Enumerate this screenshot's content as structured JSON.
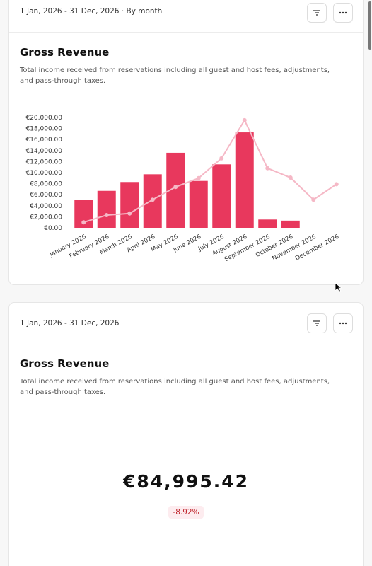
{
  "cards": [
    {
      "date_range": "1 Jan, 2026 - 31 Dec, 2026",
      "grouping": "By month",
      "title": "Gross Revenue",
      "description": "Total income received from reservations including all guest and host fees, adjustments, and pass-through taxes.",
      "chart_data": {
        "type": "bar",
        "categories": [
          "January 2026",
          "February 2026",
          "March 2026",
          "April 2026",
          "May 2026",
          "June 2026",
          "July 2026",
          "August 2026",
          "September 2026",
          "October 2026",
          "November 2026",
          "December 2026"
        ],
        "series": [
          {
            "type": "bar",
            "color": "#e8385d",
            "values": [
              5000,
              6700,
              8300,
              9700,
              13600,
              8500,
              11500,
              17300,
              1500,
              1300,
              0,
              0
            ]
          },
          {
            "type": "line",
            "color": "#f5b8c6",
            "values": [
              1000,
              2300,
              2600,
              5100,
              7400,
              9000,
              12600,
              19500,
              10800,
              9100,
              5100,
              7900
            ]
          }
        ],
        "ylim": [
          0,
          20000
        ],
        "yticks": [
          {
            "value": 0,
            "label": "€0.00"
          },
          {
            "value": 2000,
            "label": "€2,000.00"
          },
          {
            "value": 4000,
            "label": "€4,000.00"
          },
          {
            "value": 6000,
            "label": "€6,000.00"
          },
          {
            "value": 8000,
            "label": "€8,000.00"
          },
          {
            "value": 10000,
            "label": "€10,000.00"
          },
          {
            "value": 12000,
            "label": "€12,000.00"
          },
          {
            "value": 14000,
            "label": "€14,000.00"
          },
          {
            "value": 16000,
            "label": "€16,000.00"
          },
          {
            "value": 18000,
            "label": "€18,000.00"
          },
          {
            "value": 20000,
            "label": "€20,000.00"
          }
        ],
        "grid": false
      }
    },
    {
      "date_range": "1 Jan, 2026 - 31 Dec, 2026",
      "title": "Gross Revenue",
      "description": "Total income received from reservations including all guest and host fees, adjustments, and pass-through taxes.",
      "value": "€84,995.42",
      "change": "-8.92%"
    }
  ]
}
